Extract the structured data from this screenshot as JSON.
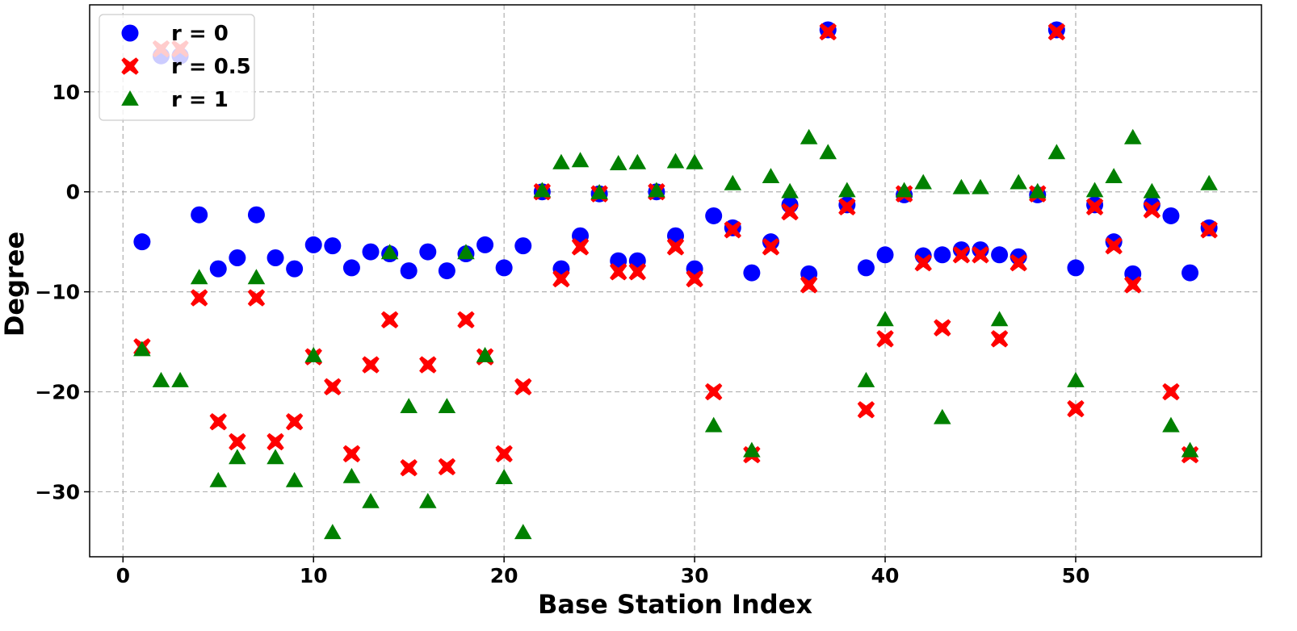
{
  "chart_data": {
    "type": "scatter",
    "xlabel": "Base Station Index",
    "ylabel": "Degree",
    "xlim": [
      -1.75,
      59.75
    ],
    "ylim": [
      -36.5,
      18.7
    ],
    "xticks": [
      0,
      10,
      20,
      30,
      40,
      50
    ],
    "yticks": [
      -30,
      -20,
      -10,
      0,
      10
    ],
    "xtick_labels": [
      "0",
      "10",
      "20",
      "30",
      "40",
      "50"
    ],
    "ytick_labels": [
      "−30",
      "−20",
      "−10",
      "0",
      "10"
    ],
    "grid": true,
    "legend_position": "top-left",
    "x": [
      1,
      2,
      3,
      4,
      5,
      6,
      7,
      8,
      9,
      10,
      11,
      12,
      13,
      14,
      15,
      16,
      17,
      18,
      19,
      20,
      21,
      22,
      23,
      24,
      25,
      26,
      27,
      28,
      29,
      30,
      31,
      32,
      33,
      34,
      35,
      36,
      37,
      38,
      39,
      40,
      41,
      42,
      43,
      44,
      45,
      46,
      47,
      48,
      49,
      50,
      51,
      52,
      53,
      54,
      55,
      56,
      57
    ],
    "series": [
      {
        "name": "r = 0",
        "marker": "circle",
        "color": "#0000ff",
        "values": [
          -5.0,
          13.6,
          13.6,
          -2.3,
          -7.7,
          -6.6,
          -2.3,
          -6.6,
          -7.7,
          -5.3,
          -5.4,
          -7.6,
          -6.0,
          -6.2,
          -7.9,
          -6.0,
          -7.9,
          -6.2,
          -5.3,
          -7.6,
          -5.4,
          0.0,
          -7.7,
          -4.4,
          -0.2,
          -6.9,
          -6.9,
          0.0,
          -4.4,
          -7.7,
          -2.4,
          -3.6,
          -8.1,
          -5.0,
          -1.3,
          -8.2,
          16.2,
          -1.3,
          -7.6,
          -6.3,
          -0.3,
          -6.4,
          -6.3,
          -5.8,
          -5.8,
          -6.3,
          -6.5,
          -0.3,
          16.2,
          -7.6,
          -1.3,
          -5.0,
          -8.2,
          -1.3,
          -2.4,
          -8.1,
          -3.6
        ]
      },
      {
        "name": "r = 0.5",
        "marker": "x",
        "color": "#ff0000",
        "values": [
          -15.5,
          14.3,
          14.3,
          -10.6,
          -23.0,
          -25.0,
          -10.6,
          -25.0,
          -23.0,
          -16.5,
          -19.5,
          -26.2,
          -17.3,
          -12.8,
          -27.6,
          -17.3,
          -27.5,
          -12.8,
          -16.5,
          -26.2,
          -19.5,
          0.0,
          -8.7,
          -5.5,
          -0.2,
          -8.0,
          -8.0,
          0.0,
          -5.5,
          -8.7,
          -20.0,
          -3.8,
          -26.3,
          -5.5,
          -2.0,
          -9.3,
          16.0,
          -1.5,
          -21.8,
          -14.7,
          -0.2,
          -7.1,
          -13.6,
          -6.3,
          -6.3,
          -14.7,
          -7.1,
          -0.2,
          16.0,
          -21.7,
          -1.5,
          -5.4,
          -9.3,
          -1.8,
          -20.0,
          -26.3,
          -3.8
        ]
      },
      {
        "name": "r = 1",
        "marker": "triangle",
        "color": "#008000",
        "values": [
          -15.8,
          -18.9,
          -18.9,
          -8.6,
          -28.9,
          -26.6,
          -8.6,
          -26.6,
          -28.9,
          -16.4,
          -34.1,
          -28.5,
          -31.0,
          -6.1,
          -21.5,
          -31.0,
          -21.5,
          -6.1,
          -16.4,
          -28.6,
          -34.1,
          0.1,
          2.9,
          3.1,
          -0.1,
          2.8,
          2.9,
          0.1,
          3.0,
          2.9,
          -23.4,
          0.8,
          -25.9,
          1.5,
          0.0,
          5.4,
          3.9,
          0.1,
          -18.9,
          -12.8,
          0.1,
          0.9,
          -22.6,
          0.4,
          0.4,
          -12.8,
          0.9,
          0.0,
          3.9,
          -18.9,
          0.1,
          1.5,
          5.4,
          0.0,
          -23.4,
          -25.9,
          0.8
        ]
      }
    ]
  }
}
